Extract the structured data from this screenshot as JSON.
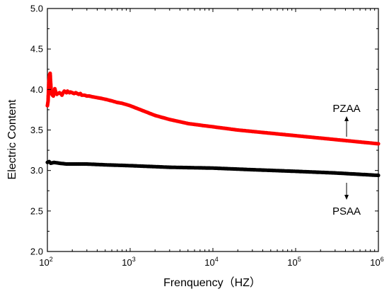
{
  "chart_data": {
    "type": "scatter",
    "title": "",
    "xlabel": "Frenquency（HZ）",
    "ylabel": "Electric Content",
    "xscale": "log",
    "xlim": [
      100,
      1000000
    ],
    "ylim": [
      2.0,
      5.0
    ],
    "y_ticks": [
      "2.0",
      "2.5",
      "3.0",
      "3.5",
      "4.0",
      "4.5",
      "5.0"
    ],
    "x_ticks": [
      {
        "base": "10",
        "exp": "2"
      },
      {
        "base": "10",
        "exp": "3"
      },
      {
        "base": "10",
        "exp": "4"
      },
      {
        "base": "10",
        "exp": "5"
      },
      {
        "base": "10",
        "exp": "6"
      }
    ],
    "grid": false,
    "legend": "none",
    "series": [
      {
        "color": "#ff0000",
        "x": [
          100,
          102,
          104,
          106,
          108,
          110,
          112,
          115,
          118,
          120,
          123,
          126,
          130,
          134,
          140,
          145,
          150,
          155,
          160,
          165,
          170,
          175,
          180,
          185,
          190,
          200,
          210,
          220,
          230,
          240,
          250,
          260,
          280,
          300,
          320,
          350,
          400,
          450,
          500,
          600,
          700,
          800,
          1000,
          1500,
          2000,
          3000,
          5000,
          7000,
          10000,
          20000,
          50000,
          100000,
          200000,
          500000,
          1000000
        ],
        "y": [
          3.8,
          3.86,
          4.1,
          4.18,
          4.2,
          4.05,
          3.95,
          3.93,
          3.92,
          3.95,
          4.01,
          3.97,
          3.94,
          3.95,
          3.96,
          3.95,
          3.93,
          3.96,
          3.98,
          3.97,
          3.96,
          3.98,
          3.97,
          3.96,
          3.97,
          3.96,
          3.95,
          3.96,
          3.95,
          3.94,
          3.95,
          3.93,
          3.93,
          3.92,
          3.92,
          3.91,
          3.9,
          3.89,
          3.88,
          3.86,
          3.84,
          3.83,
          3.8,
          3.73,
          3.68,
          3.63,
          3.58,
          3.56,
          3.54,
          3.5,
          3.46,
          3.43,
          3.4,
          3.36,
          3.33
        ]
      },
      {
        "color": "#000000",
        "x": [
          100,
          105,
          110,
          120,
          140,
          170,
          200,
          300,
          500,
          1000,
          3000,
          10000,
          30000,
          100000,
          300000,
          1000000
        ],
        "y": [
          3.1,
          3.11,
          3.09,
          3.1,
          3.09,
          3.08,
          3.08,
          3.08,
          3.07,
          3.06,
          3.04,
          3.03,
          3.01,
          2.99,
          2.97,
          2.94
        ]
      }
    ],
    "annotations": [
      {
        "text": "PZAA",
        "arrow": "up"
      },
      {
        "text": "PSAA",
        "arrow": "down"
      }
    ]
  }
}
